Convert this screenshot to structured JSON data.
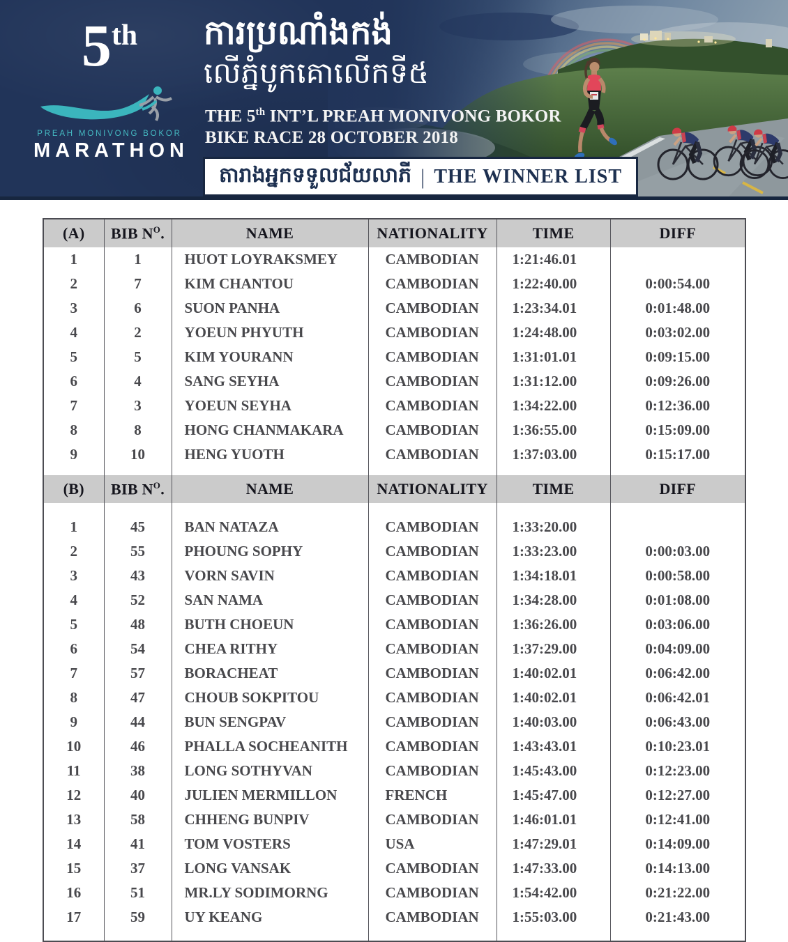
{
  "banner": {
    "logo": {
      "edition_number": "5",
      "edition_suffix": "th",
      "org_line": "PREAH MONIVONG BOKOR",
      "brand": "MARATHON"
    },
    "title_km_line1": "ការប្រណាំងកង់",
    "title_km_line2": "លើភ្នំបូកគោលើកទី៥",
    "subtitle_en": {
      "pre": "THE 5",
      "sup": "th",
      "post": " INT’L PREAH MONIVONG BOKOR",
      "line2": "BIKE RACE 28 OCTOBER 2018"
    },
    "winner_box": {
      "km": "តារាងអ្នកទទួលជ័យលាភី",
      "divider": "|",
      "en": "THE WINNER LIST"
    }
  },
  "colors": {
    "banner_navy": "#213459",
    "logo_teal": "#3bb5bd",
    "header_gray": "#cbcbcb",
    "table_border": "#56565c",
    "table_text": "#48484c"
  },
  "tables": [
    {
      "section_label": "(A)",
      "header": {
        "bib_pre": "BIB N",
        "bib_sup": "O",
        "bib_post": ".",
        "name": "NAME",
        "nationality": "NATIONALITY",
        "time": "TIME",
        "diff": "DIFF"
      },
      "rows": [
        [
          "1",
          "1",
          "HUOT LOYRAKSMEY",
          "CAMBODIAN",
          "1:21:46.01",
          ""
        ],
        [
          "2",
          "7",
          "KIM CHANTOU",
          "CAMBODIAN",
          "1:22:40.00",
          "0:00:54.00"
        ],
        [
          "3",
          "6",
          "SUON PANHA",
          "CAMBODIAN",
          "1:23:34.01",
          "0:01:48.00"
        ],
        [
          "4",
          "2",
          "YOEUN PHYUTH",
          "CAMBODIAN",
          "1:24:48.00",
          "0:03:02.00"
        ],
        [
          "5",
          "5",
          "KIM YOURANN",
          "CAMBODIAN",
          "1:31:01.01",
          "0:09:15.00"
        ],
        [
          "6",
          "4",
          "SANG SEYHA",
          "CAMBODIAN",
          "1:31:12.00",
          "0:09:26.00"
        ],
        [
          "7",
          "3",
          "YOEUN SEYHA",
          "CAMBODIAN",
          "1:34:22.00",
          "0:12:36.00"
        ],
        [
          "8",
          "8",
          "HONG CHANMAKARA",
          "CAMBODIAN",
          "1:36:55.00",
          "0:15:09.00"
        ],
        [
          "9",
          "10",
          "HENG YUOTH",
          "CAMBODIAN",
          "1:37:03.00",
          "0:15:17.00"
        ]
      ]
    },
    {
      "section_label": "(B)",
      "header": {
        "bib_pre": "BIB N",
        "bib_sup": "O",
        "bib_post": ".",
        "name": "NAME",
        "nationality": "NATIONALITY",
        "time": "TIME",
        "diff": "DIFF"
      },
      "rows": [
        [
          "1",
          "45",
          "BAN NATAZA",
          "CAMBODIAN",
          "1:33:20.00",
          ""
        ],
        [
          "2",
          "55",
          "PHOUNG SOPHY",
          "CAMBODIAN",
          "1:33:23.00",
          "0:00:03.00"
        ],
        [
          "3",
          "43",
          "VORN SAVIN",
          "CAMBODIAN",
          "1:34:18.01",
          "0:00:58.00"
        ],
        [
          "4",
          "52",
          "SAN NAMA",
          "CAMBODIAN",
          "1:34:28.00",
          "0:01:08.00"
        ],
        [
          "5",
          "48",
          "BUTH CHOEUN",
          "CAMBODIAN",
          "1:36:26.00",
          "0:03:06.00"
        ],
        [
          "6",
          "54",
          "CHEA RITHY",
          "CAMBODIAN",
          "1:37:29.00",
          "0:04:09.00"
        ],
        [
          "7",
          "57",
          "BORACHEAT",
          "CAMBODIAN",
          "1:40:02.01",
          "0:06:42.00"
        ],
        [
          "8",
          "47",
          "CHOUB SOKPITOU",
          "CAMBODIAN",
          "1:40:02.01",
          "0:06:42.01"
        ],
        [
          "9",
          "44",
          "BUN SENGPAV",
          "CAMBODIAN",
          "1:40:03.00",
          "0:06:43.00"
        ],
        [
          "10",
          "46",
          "PHALLA SOCHEANITH",
          "CAMBODIAN",
          "1:43:43.01",
          "0:10:23.01"
        ],
        [
          "11",
          "38",
          "LONG SOTHYVAN",
          "CAMBODIAN",
          "1:45:43.00",
          "0:12:23.00"
        ],
        [
          "12",
          "40",
          "JULIEN MERMILLON",
          "FRENCH",
          "1:45:47.00",
          "0:12:27.00"
        ],
        [
          "13",
          "58",
          "CHHENG BUNPIV",
          "CAMBODIAN",
          "1:46:01.01",
          "0:12:41.00"
        ],
        [
          "14",
          "41",
          "TOM VOSTERS",
          "USA",
          "1:47:29.01",
          "0:14:09.00"
        ],
        [
          "15",
          "37",
          "LONG VANSAK",
          "CAMBODIAN",
          "1:47:33.00",
          "0:14:13.00"
        ],
        [
          "16",
          "51",
          "MR.LY SODIMORNG",
          "CAMBODIAN",
          "1:54:42.00",
          "0:21:22.00"
        ],
        [
          "17",
          "59",
          "UY KEANG",
          "CAMBODIAN",
          "1:55:03.00",
          "0:21:43.00"
        ]
      ]
    }
  ]
}
